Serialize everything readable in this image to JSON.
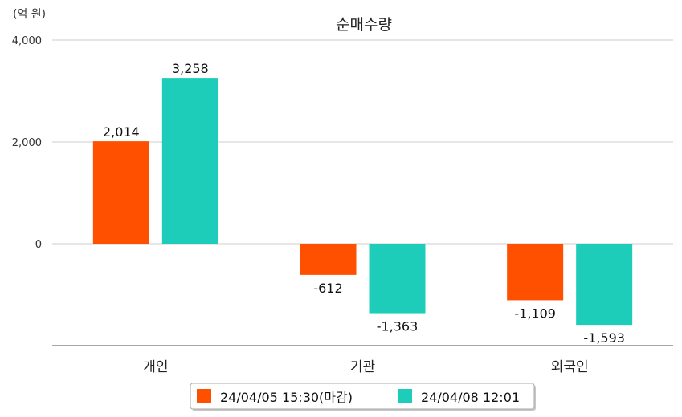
{
  "chart_data": {
    "type": "bar",
    "title": "순매수량",
    "unit_label": "(억 원)",
    "categories": [
      "개인",
      "기관",
      "외국인"
    ],
    "series": [
      {
        "name": "24/04/05 15:30(마감)",
        "color": "#ff5000",
        "values": [
          2014,
          -612,
          -1109
        ],
        "labels": [
          "2,014",
          "-612",
          "-1,109"
        ]
      },
      {
        "name": "24/04/08 12:01",
        "color": "#1ecdb9",
        "values": [
          3258,
          -1363,
          -1593
        ],
        "labels": [
          "3,258",
          "-1,363",
          "-1,593"
        ]
      }
    ],
    "yticks": [
      {
        "value": 4000,
        "label": "4,000"
      },
      {
        "value": 2000,
        "label": "2,000"
      },
      {
        "value": 0,
        "label": "0"
      }
    ],
    "ylim": [
      -2000,
      4000
    ],
    "grid": true,
    "legend_position": "bottom"
  }
}
